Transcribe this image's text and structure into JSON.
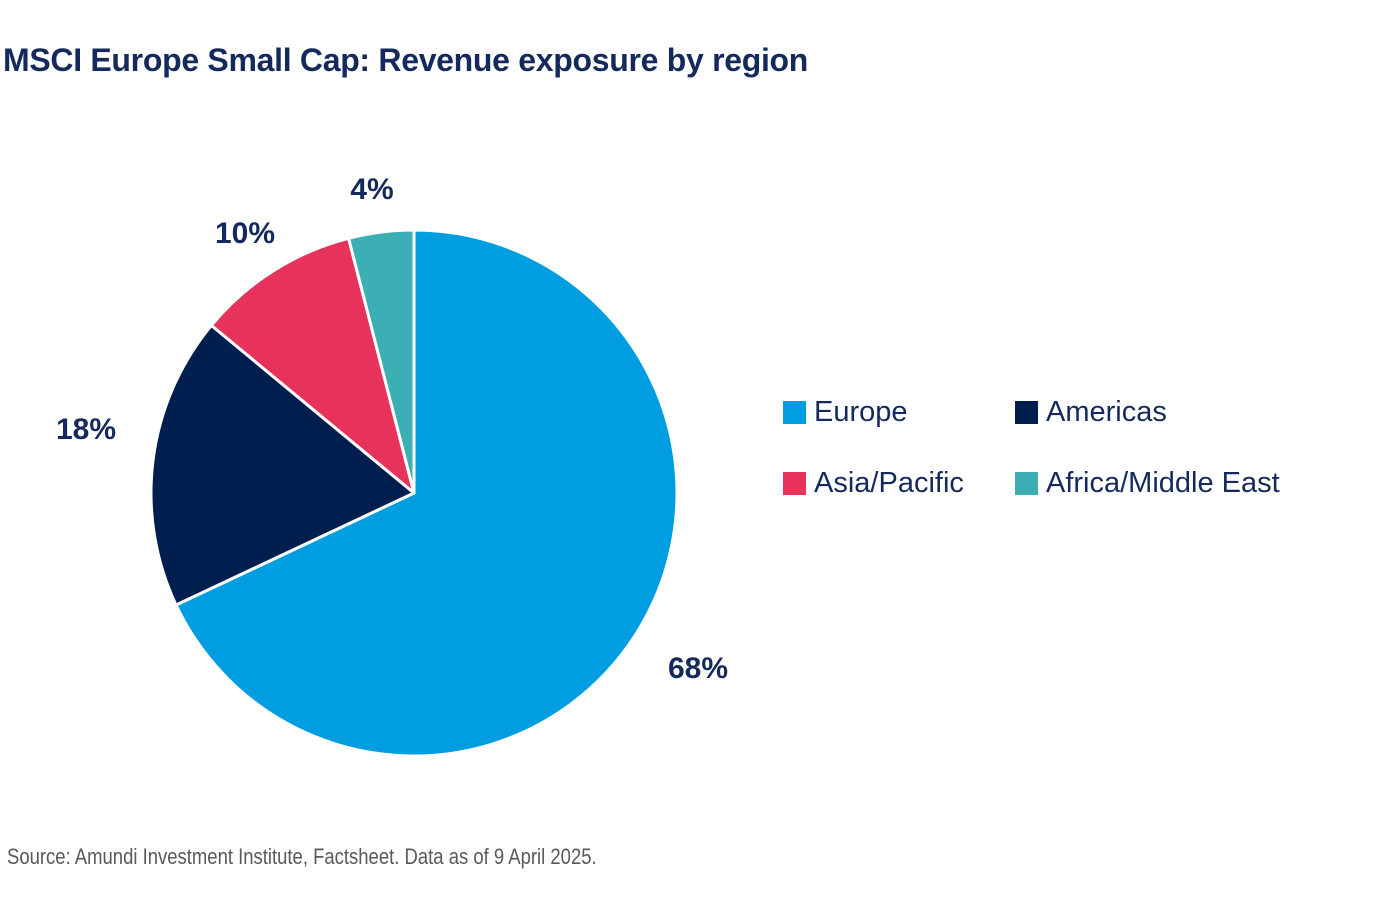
{
  "title": "MSCI Europe Small Cap: Revenue exposure by region",
  "source": "Source: Amundi Investment Institute, Factsheet. Data as of 9 April 2025.",
  "colors": {
    "title_text": "#142a5c",
    "label_text": "#142a5c",
    "source_text": "#595959",
    "background": "#ffffff",
    "slice_border": "#ffffff"
  },
  "chart_data": {
    "type": "pie",
    "title": "MSCI Europe Small Cap: Revenue exposure by region",
    "categories": [
      "Europe",
      "Americas",
      "Asia/Pacific",
      "Africa/Middle East"
    ],
    "values": [
      68,
      18,
      10,
      4
    ],
    "labels": [
      "68%",
      "18%",
      "10%",
      "4%"
    ],
    "colors": [
      "#009de0",
      "#011f4e",
      "#e7325c",
      "#3bafb4"
    ],
    "start_angle_deg": 0,
    "direction": "clockwise",
    "legend_position": "right",
    "grid": false
  },
  "legend": {
    "items": [
      {
        "label": "Europe",
        "color": "#009de0"
      },
      {
        "label": "Americas",
        "color": "#011f4e"
      },
      {
        "label": "Asia/Pacific",
        "color": "#e7325c"
      },
      {
        "label": "Africa/Middle East",
        "color": "#3bafb4"
      }
    ]
  }
}
